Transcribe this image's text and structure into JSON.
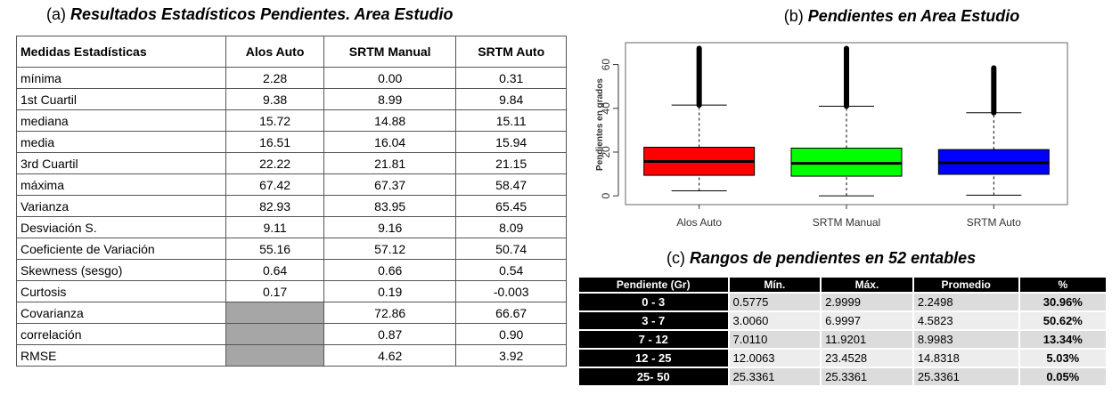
{
  "table_a": {
    "panel_label": "(a)",
    "title": "Resultados Estadísticos Pendientes. Area Estudio",
    "columns": [
      "Medidas Estadísticas",
      "Alos Auto",
      "SRTM Manual",
      "SRTM Auto"
    ],
    "rows": [
      [
        "mínima",
        "2.28",
        "0.00",
        "0.31"
      ],
      [
        "1st Cuartil",
        "9.38",
        "8.99",
        "9.84"
      ],
      [
        "mediana",
        "15.72",
        "14.88",
        "15.11"
      ],
      [
        "media",
        "16.51",
        "16.04",
        "15.94"
      ],
      [
        "3rd Cuartil",
        "22.22",
        "21.81",
        "21.15"
      ],
      [
        "máxima",
        "67.42",
        "67.37",
        "58.47"
      ],
      [
        "Varianza",
        "82.93",
        "83.95",
        "65.45"
      ],
      [
        "Desviación S.",
        "9.11",
        "9.16",
        "8.09"
      ],
      [
        "Coeficiente de Variación",
        "55.16",
        "57.12",
        "50.74"
      ],
      [
        "Skewness (sesgo)",
        "0.64",
        "0.66",
        "0.54"
      ],
      [
        "Curtosis",
        "0.17",
        "0.19",
        "-0.003"
      ],
      [
        "Covarianza",
        null,
        "72.86",
        "66.67"
      ],
      [
        "correlación",
        null,
        "0.87",
        "0.90"
      ],
      [
        "RMSE",
        null,
        "4.62",
        "3.92"
      ]
    ]
  },
  "chart_data": {
    "type": "box",
    "panel_label": "(b)",
    "title": "Pendientes en Area Estudio",
    "y_label": "Pendientes en grados",
    "categories": [
      "Alos Auto",
      "SRTM Manual",
      "SRTM Auto"
    ],
    "series": [
      {
        "color": "#ff0000",
        "whisker_low": 2.28,
        "q1": 9.38,
        "median": 15.72,
        "q3": 22.22,
        "whisker_high": 41.5,
        "max": 67.42
      },
      {
        "color": "#00ff00",
        "whisker_low": 0,
        "q1": 8.99,
        "median": 14.88,
        "q3": 21.81,
        "whisker_high": 41,
        "max": 67.37
      },
      {
        "color": "#0000ff",
        "whisker_low": 0.31,
        "q1": 9.84,
        "median": 15.11,
        "q3": 21.15,
        "whisker_high": 38,
        "max": 58.47
      }
    ],
    "ylim": [
      -4,
      70
    ],
    "yticks": [
      0,
      20,
      40,
      60
    ]
  },
  "table_c": {
    "panel_label": "(c)",
    "title": "Rangos de pendientes en 52 entables",
    "columns": [
      "Pendiente (Gr)",
      "Mín.",
      "Máx.",
      "Promedio",
      "%"
    ],
    "rows": [
      [
        "0 - 3",
        "0.5775",
        "2.9999",
        "2.2498",
        "30.96%"
      ],
      [
        "3 - 7",
        "3.0060",
        "6.9997",
        "4.5823",
        "50.62%"
      ],
      [
        "7 - 12",
        "7.0110",
        "11.9201",
        "8.9983",
        "13.34%"
      ],
      [
        "12 - 25",
        "12.0063",
        "23.4528",
        "14.8318",
        "5.03%"
      ],
      [
        "25- 50",
        "25.3361",
        "25.3361",
        "25.3361",
        "0.05%"
      ]
    ]
  }
}
